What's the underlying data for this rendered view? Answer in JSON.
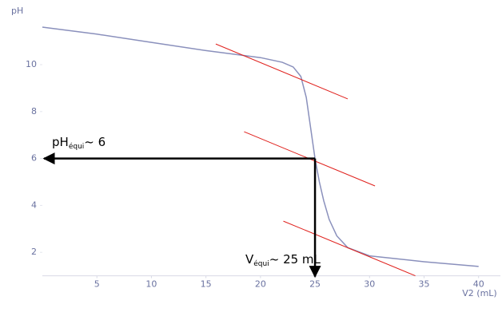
{
  "chart_data": {
    "type": "line",
    "y_label": "pH",
    "x_label": "V2 (mL)",
    "xlim": [
      0,
      42
    ],
    "ylim": [
      1,
      12.3
    ],
    "xticks": [
      5,
      10,
      15,
      20,
      25,
      30,
      35,
      40
    ],
    "yticks": [
      2,
      4,
      6,
      8,
      10
    ],
    "x": [
      0,
      5,
      10,
      15,
      20,
      22,
      23,
      23.7,
      24.2,
      24.6,
      25,
      25.4,
      25.8,
      26.3,
      27,
      28,
      30,
      35,
      40
    ],
    "series": [
      {
        "name": "pH",
        "color": "#8a90bc",
        "values": [
          11.6,
          11.3,
          10.95,
          10.6,
          10.3,
          10.1,
          9.9,
          9.5,
          8.6,
          7.3,
          6,
          5,
          4.2,
          3.4,
          2.7,
          2.2,
          1.85,
          1.6,
          1.4
        ]
      }
    ],
    "tangents": {
      "color": "#e0201c",
      "lines": [
        {
          "x": [
            15.9,
            28
          ],
          "y": [
            10.88,
            8.54
          ]
        },
        {
          "x": [
            18.5,
            30.5
          ],
          "y": [
            7.14,
            4.83
          ]
        },
        {
          "x": [
            22.1,
            34.2
          ],
          "y": [
            3.33,
            1.0
          ]
        }
      ]
    },
    "equivalence": {
      "x": 25,
      "y": 6
    },
    "annotations": {
      "ph": {
        "main": "pH",
        "sub": "équi",
        "rest": "~ 6"
      },
      "v": {
        "main": "V",
        "sub": "équi",
        "rest": "~ 25 mL"
      }
    }
  }
}
